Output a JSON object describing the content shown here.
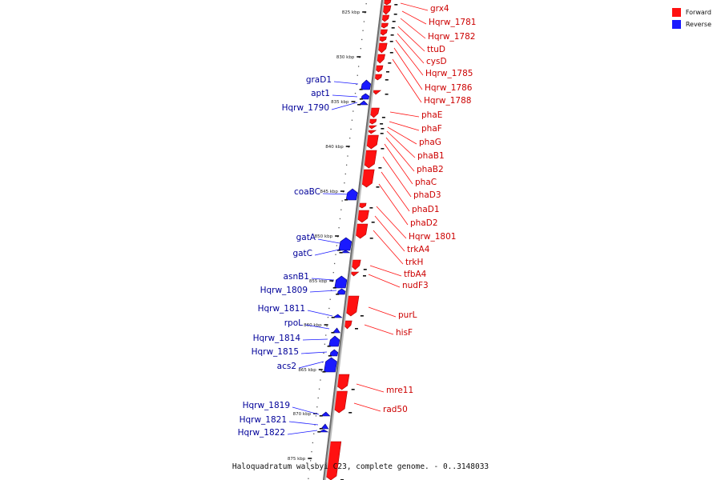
{
  "caption": "Haloquadratum walsbyi C23, complete genome. - 0..3148033",
  "legend": [
    {
      "label": "Forward",
      "color": "#ff1111"
    },
    {
      "label": "Reverse",
      "color": "#1a1aff"
    }
  ],
  "scale_labels": [
    "825 kbp",
    "830 kbp",
    "835 kbp",
    "840 kbp",
    "845 kbp",
    "850 kbp",
    "855 kbp",
    "860 kbp",
    "865 kbp",
    "870 kbp",
    "875 kbp"
  ],
  "genes": [
    {
      "name": "grx4",
      "strand": "forward"
    },
    {
      "name": "Hqrw_1781",
      "strand": "forward"
    },
    {
      "name": "Hqrw_1782",
      "strand": "forward"
    },
    {
      "name": "ttuD",
      "strand": "forward"
    },
    {
      "name": "cysD",
      "strand": "forward"
    },
    {
      "name": "Hqrw_1785",
      "strand": "forward"
    },
    {
      "name": "Hqrw_1786",
      "strand": "forward"
    },
    {
      "name": "Hqrw_1788",
      "strand": "forward"
    },
    {
      "name": "graD1",
      "strand": "reverse"
    },
    {
      "name": "apt1",
      "strand": "reverse"
    },
    {
      "name": "Hqrw_1790",
      "strand": "reverse"
    },
    {
      "name": "phaE",
      "strand": "forward"
    },
    {
      "name": "phaF",
      "strand": "forward"
    },
    {
      "name": "phaG",
      "strand": "forward"
    },
    {
      "name": "phaB1",
      "strand": "forward"
    },
    {
      "name": "phaB2",
      "strand": "forward"
    },
    {
      "name": "phaC",
      "strand": "forward"
    },
    {
      "name": "phaD3",
      "strand": "forward"
    },
    {
      "name": "phaD1",
      "strand": "forward"
    },
    {
      "name": "phaD2",
      "strand": "forward"
    },
    {
      "name": "Hqrw_1801",
      "strand": "forward"
    },
    {
      "name": "trkA4",
      "strand": "forward"
    },
    {
      "name": "trkH",
      "strand": "forward"
    },
    {
      "name": "coaBC",
      "strand": "reverse"
    },
    {
      "name": "gatA",
      "strand": "reverse"
    },
    {
      "name": "gatC",
      "strand": "reverse"
    },
    {
      "name": "tfbA4",
      "strand": "forward"
    },
    {
      "name": "nudF3",
      "strand": "forward"
    },
    {
      "name": "asnB1",
      "strand": "reverse"
    },
    {
      "name": "Hqrw_1809",
      "strand": "reverse"
    },
    {
      "name": "Hqrw_1811",
      "strand": "reverse"
    },
    {
      "name": "rpoL",
      "strand": "reverse"
    },
    {
      "name": "purL",
      "strand": "forward"
    },
    {
      "name": "hisF",
      "strand": "forward"
    },
    {
      "name": "Hqrw_1814",
      "strand": "reverse"
    },
    {
      "name": "Hqrw_1815",
      "strand": "reverse"
    },
    {
      "name": "acs2",
      "strand": "reverse"
    },
    {
      "name": "mre11",
      "strand": "forward"
    },
    {
      "name": "rad50",
      "strand": "forward"
    },
    {
      "name": "Hqrw_1819",
      "strand": "reverse"
    },
    {
      "name": "Hqrw_1821",
      "strand": "reverse"
    },
    {
      "name": "Hqrw_1822",
      "strand": "reverse"
    }
  ]
}
